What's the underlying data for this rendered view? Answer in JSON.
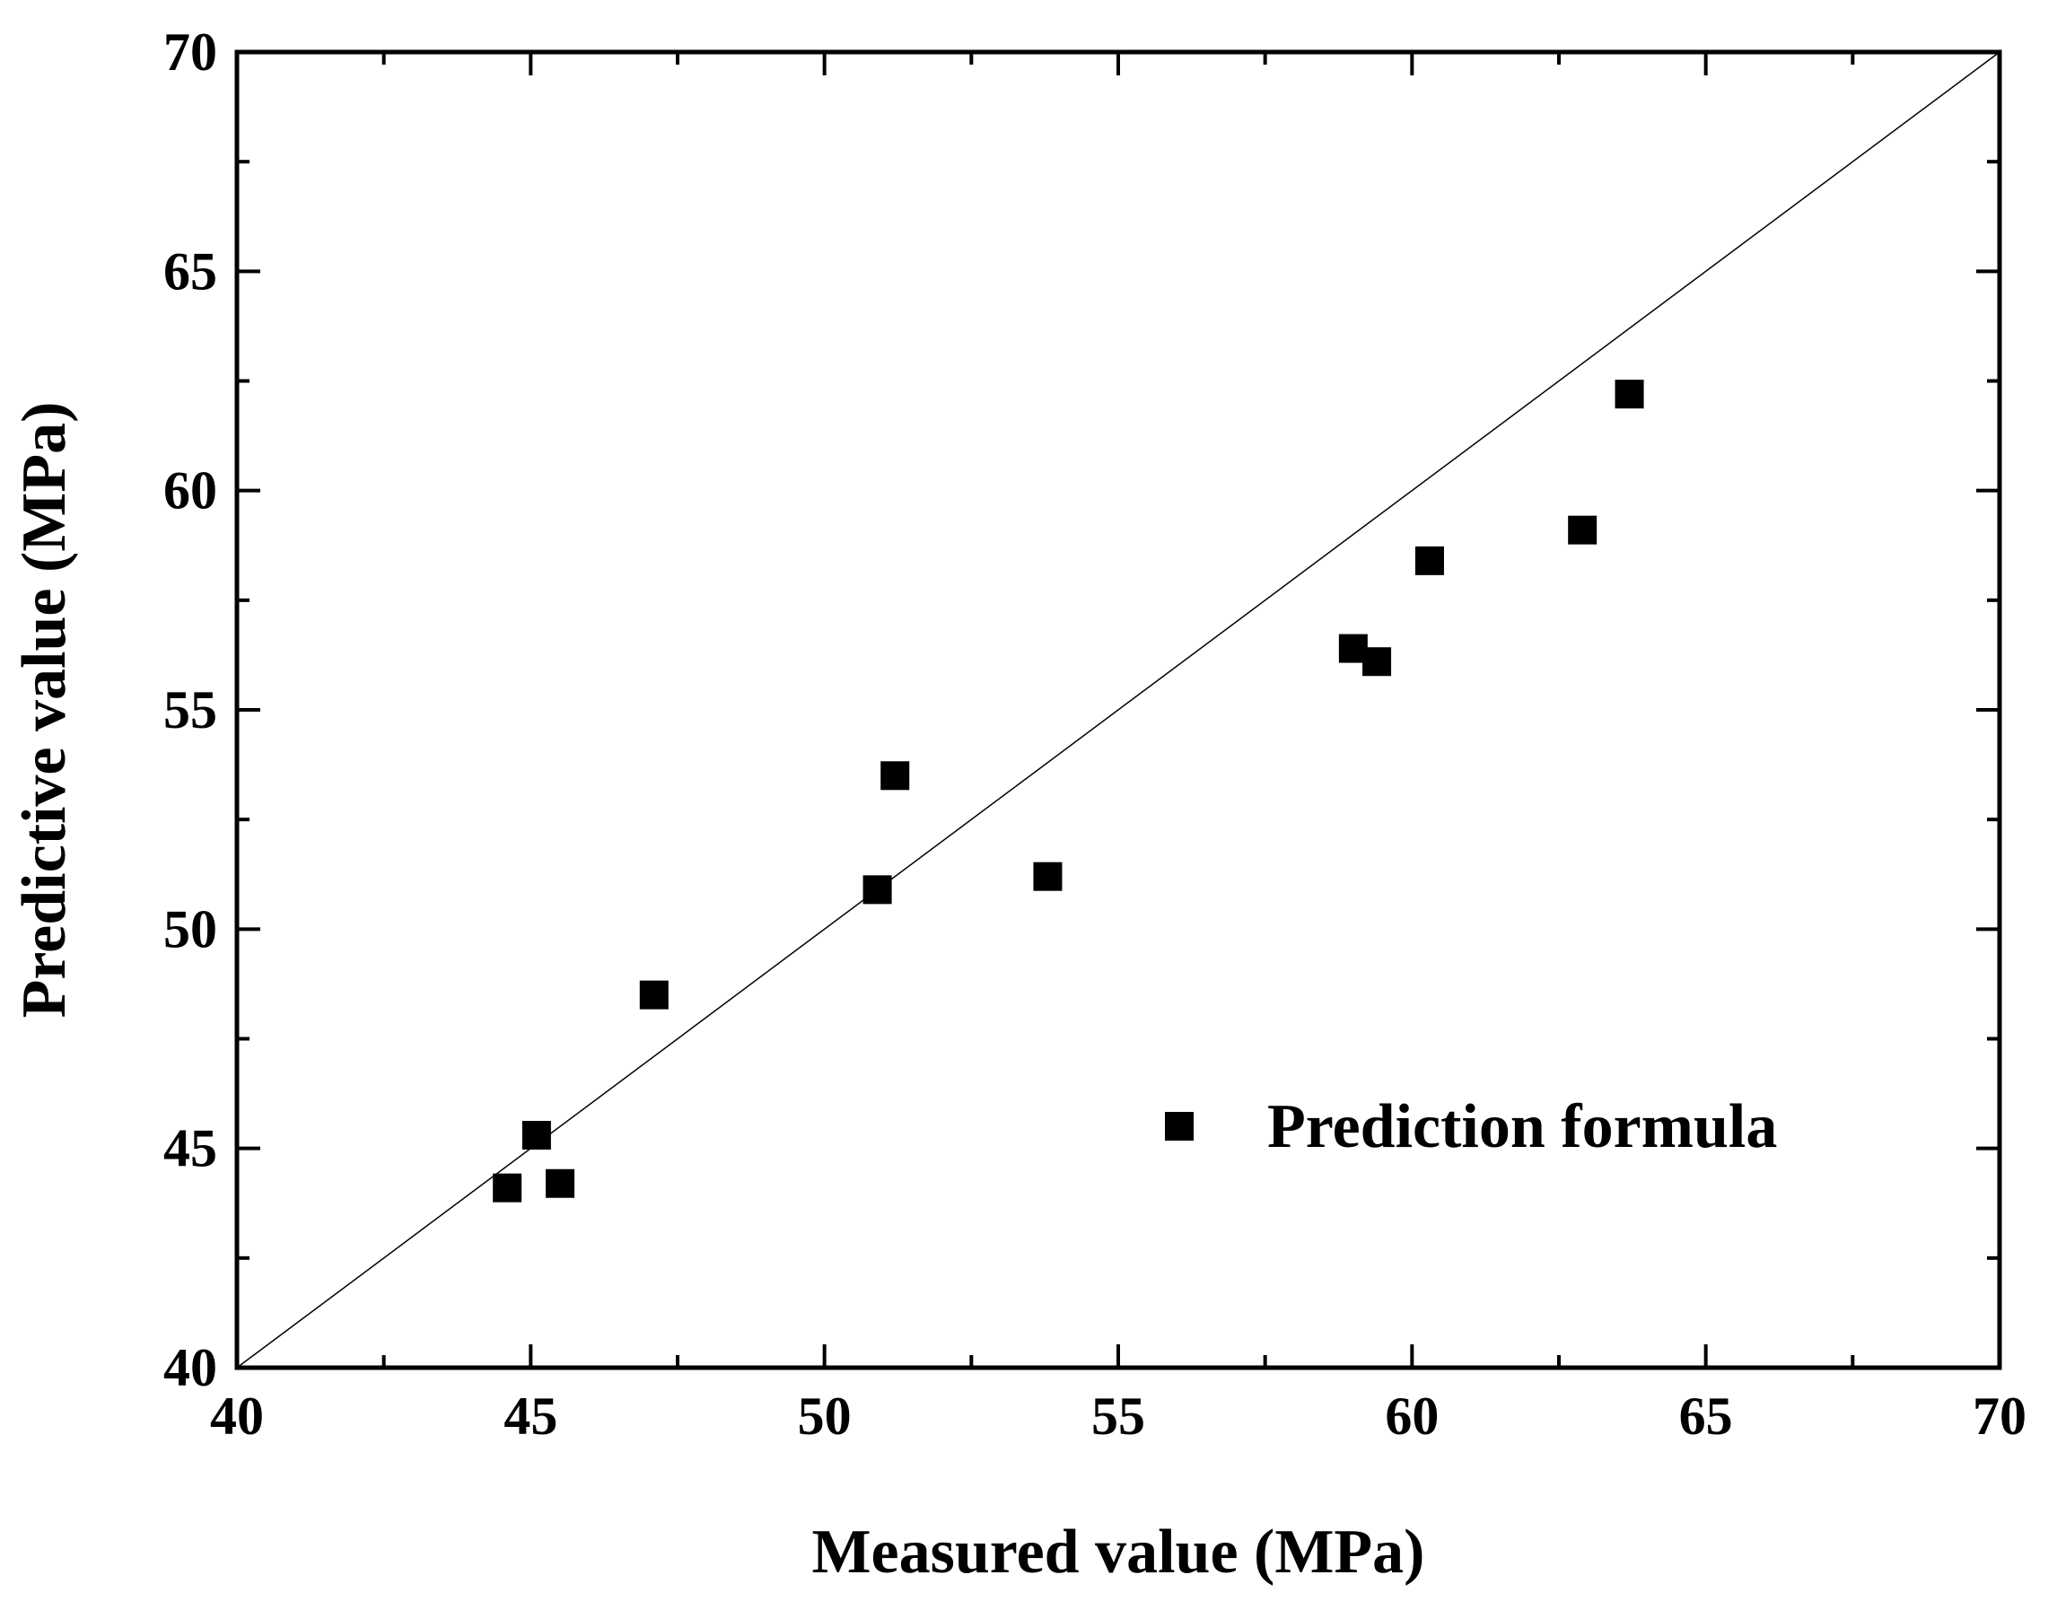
{
  "chart_data": {
    "type": "scatter",
    "title": "",
    "xlabel": "Measured value (MPa)",
    "ylabel": "Predictive value (MPa)",
    "xlim": [
      40,
      70
    ],
    "ylim": [
      40,
      70
    ],
    "x_ticks": [
      "40",
      "45",
      "50",
      "55",
      "60",
      "65",
      "70"
    ],
    "y_ticks": [
      "40",
      "45",
      "50",
      "55",
      "60",
      "65",
      "70"
    ],
    "grid": false,
    "reference_line": {
      "name": "y = x",
      "from": [
        40,
        40
      ],
      "to": [
        70,
        70
      ]
    },
    "legend": {
      "position": "bottom-right",
      "entries": [
        "Prediction formula"
      ]
    },
    "series": [
      {
        "name": "Prediction formula",
        "marker": "square",
        "color": "#000000",
        "points": [
          {
            "x": 44.6,
            "y": 44.1
          },
          {
            "x": 45.1,
            "y": 45.3
          },
          {
            "x": 45.5,
            "y": 44.2
          },
          {
            "x": 47.1,
            "y": 48.5
          },
          {
            "x": 50.9,
            "y": 50.9
          },
          {
            "x": 51.2,
            "y": 53.5
          },
          {
            "x": 53.8,
            "y": 51.2
          },
          {
            "x": 59.0,
            "y": 56.4
          },
          {
            "x": 59.4,
            "y": 56.1
          },
          {
            "x": 60.3,
            "y": 58.4
          },
          {
            "x": 62.9,
            "y": 59.1
          },
          {
            "x": 63.7,
            "y": 62.2
          }
        ]
      }
    ]
  }
}
